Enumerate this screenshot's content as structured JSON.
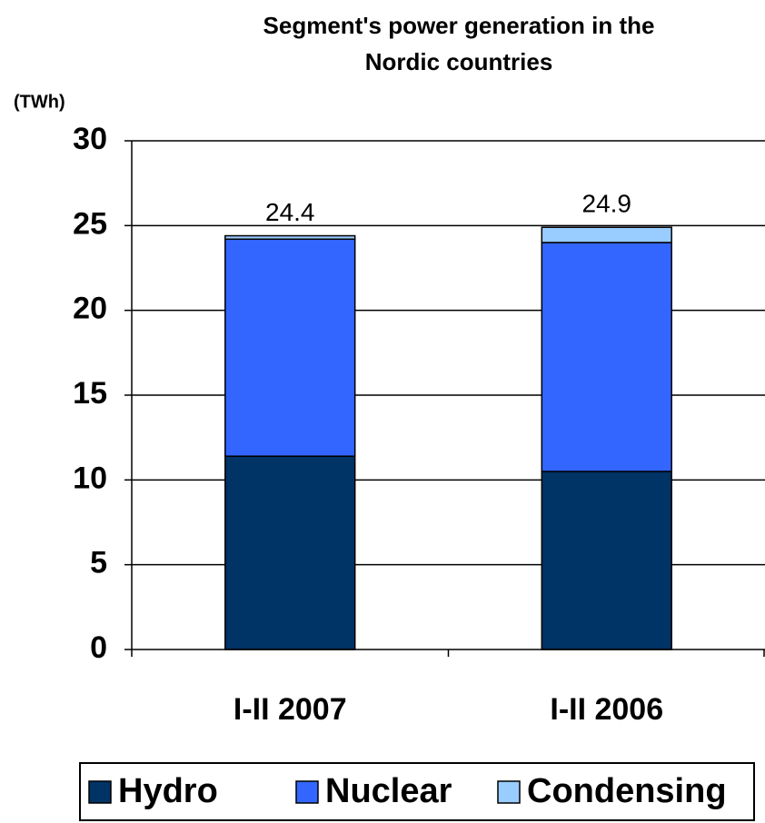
{
  "chart_data": {
    "type": "stacked_bar",
    "title": "Segment's power generation in the Nordic countries",
    "title_lines": [
      "Segment's power generation in the",
      "Nordic countries"
    ],
    "y_axis_label": "(TWh)",
    "categories": [
      "I-II 2007",
      "I-II 2006"
    ],
    "series": [
      {
        "name": "Hydro",
        "color": "#003366",
        "values": [
          11.4,
          10.5
        ]
      },
      {
        "name": "Nuclear",
        "color": "#3366ff",
        "values": [
          12.8,
          13.5
        ]
      },
      {
        "name": "Condensing",
        "color": "#99ccff",
        "values": [
          0.2,
          0.9
        ]
      }
    ],
    "totals": [
      24.4,
      24.9
    ],
    "ylim": [
      0,
      30
    ],
    "yticks": [
      0,
      5,
      10,
      15,
      20,
      25,
      30
    ],
    "grid": true,
    "legend": "bottom"
  }
}
